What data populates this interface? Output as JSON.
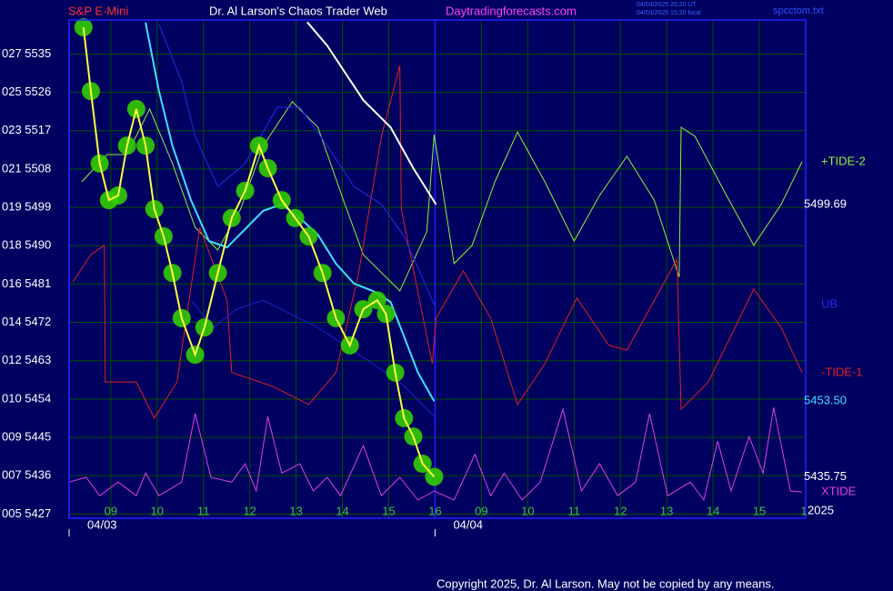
{
  "chart_data": {
    "type": "line",
    "symbol": "S&P E-Mini",
    "title": "Dr. Al Larson's Chaos Trader Web",
    "website": "Daytradingforecasts.com",
    "timestamps": [
      "04/03/2025 20:20 UT",
      "04/03/2025 15:20 local"
    ],
    "file": "spcctom.txt",
    "year": "2025",
    "copyright": "Copyright 2025, Dr. Al Larson. May not be copied by any means.",
    "grid": true,
    "xlim": [
      8.1,
      24
    ],
    "ylim": [
      5426,
      5543
    ],
    "xticks": [
      {
        "value": 9,
        "label": "09"
      },
      10,
      11,
      12,
      13,
      14,
      15,
      16,
      {
        "value": 17,
        "label": "09"
      },
      {
        "value": 18,
        "label": "10"
      },
      {
        "value": 19,
        "label": "11"
      },
      {
        "value": 20,
        "label": "12"
      },
      {
        "value": 21,
        "label": "13"
      },
      {
        "value": 22,
        "label": "14"
      },
      {
        "value": 23,
        "label": "15"
      },
      {
        "value": 24,
        "label": "1"
      }
    ],
    "yticks": [
      {
        "value": 5427,
        "label": "005 5427"
      },
      {
        "value": 5436,
        "label": "007 5436"
      },
      {
        "value": 5445,
        "label": "009 5445"
      },
      {
        "value": 5454,
        "label": "010 5454"
      },
      {
        "value": 5463,
        "label": "012 5463"
      },
      {
        "value": 5472,
        "label": "014 5472"
      },
      {
        "value": 5481,
        "label": "016 5481"
      },
      {
        "value": 5490,
        "label": "018 5490"
      },
      {
        "value": 5499,
        "label": "019 5499"
      },
      {
        "value": 5508,
        "label": "021 5508"
      },
      {
        "value": 5517,
        "label": "023 5517"
      },
      {
        "value": 5526,
        "label": "025 5526"
      },
      {
        "value": 5535,
        "label": "027 5535"
      }
    ],
    "date_labels": [
      {
        "x": 8.1,
        "label": "04/03"
      },
      {
        "x": 16,
        "label": "04/04"
      }
    ],
    "series": [
      {
        "name": "+TIDE-2",
        "color": "#90f040",
        "x": [
          8.37,
          8.92,
          9.35,
          9.84,
          10.33,
          10.82,
          11.31,
          11.8,
          12.29,
          12.92,
          13.47,
          14.02,
          14.45,
          15.24,
          15.82,
          15.98,
          16.41,
          16.8,
          17.29,
          17.78,
          18.37,
          19.0,
          19.55,
          20.14,
          20.73,
          21.27,
          21.31,
          21.61,
          22.29,
          22.88,
          23.47,
          23.92
        ],
        "values": [
          5505.0,
          5511.4,
          5511.4,
          5522.1,
          5509.3,
          5494.3,
          5489.0,
          5498.6,
          5513.5,
          5523.8,
          5517.8,
          5500.7,
          5487.9,
          5479.4,
          5493.3,
          5516.1,
          5485.8,
          5490.1,
          5505.0,
          5516.7,
          5505.0,
          5491.1,
          5501.8,
          5511.0,
          5500.7,
          5482.6,
          5517.8,
          5515.7,
          5501.8,
          5490.1,
          5499.7,
          5509.7
        ]
      },
      {
        "name": "-TIDE-1",
        "color": "#e02020",
        "x": [
          8.18,
          8.57,
          8.86,
          8.88,
          9.55,
          9.94,
          10.43,
          10.92,
          11.51,
          11.61,
          12.49,
          13.27,
          13.86,
          14.35,
          14.84,
          15.24,
          15.27,
          15.94,
          16.02,
          16.61,
          17.2,
          17.78,
          18.37,
          19.06,
          19.75,
          20.14,
          21.22,
          21.31,
          21.9,
          22.88,
          23.47,
          23.92
        ],
        "values": [
          5481.5,
          5487.9,
          5490.1,
          5458.0,
          5458.0,
          5449.5,
          5458.0,
          5494.3,
          5477.2,
          5460.2,
          5457.0,
          5452.7,
          5460.2,
          5483.6,
          5515.7,
          5532.3,
          5498.6,
          5462.3,
          5473.0,
          5484.1,
          5473.0,
          5452.7,
          5462.3,
          5477.7,
          5466.6,
          5465.5,
          5486.8,
          5451.6,
          5458.0,
          5479.8,
          5470.8,
          5460.2
        ]
      },
      {
        "name": "XTIDE",
        "color": "#e040e0",
        "x": [
          8.1,
          8.47,
          8.76,
          9.16,
          9.55,
          9.75,
          10.04,
          10.53,
          10.82,
          11.16,
          11.61,
          11.9,
          12.14,
          12.39,
          12.69,
          13.08,
          13.37,
          13.67,
          13.96,
          14.45,
          14.84,
          15.24,
          15.63,
          15.98,
          16.41,
          16.86,
          17.2,
          17.49,
          17.88,
          18.27,
          18.76,
          19.16,
          19.55,
          19.94,
          20.33,
          20.63,
          21.02,
          21.51,
          21.8,
          22.1,
          22.39,
          22.78,
          23.08,
          23.31,
          23.67,
          23.92
        ],
        "values": [
          5434.5,
          5435.6,
          5431.3,
          5434.5,
          5431.3,
          5436.6,
          5431.3,
          5434.5,
          5450.6,
          5435.6,
          5434.5,
          5438.8,
          5432.4,
          5449.9,
          5436.6,
          5438.8,
          5432.4,
          5435.6,
          5431.3,
          5443.1,
          5431.3,
          5435.6,
          5430.3,
          5432.4,
          5430.3,
          5441.0,
          5431.3,
          5436.6,
          5430.3,
          5434.5,
          5451.6,
          5432.4,
          5438.8,
          5431.3,
          5434.5,
          5450.6,
          5431.3,
          5434.5,
          5430.3,
          5444.1,
          5432.4,
          5445.2,
          5436.6,
          5452.0,
          5432.4,
          5432.2
        ]
      },
      {
        "name": "UB",
        "color": "#2828e8",
        "x": [
          10.04,
          10.53,
          10.82,
          11.31,
          11.9,
          12.59,
          13.08,
          13.67,
          14.25,
          14.84,
          15.33,
          15.98
        ],
        "values": [
          5542.0,
          5528.5,
          5515.7,
          5503.9,
          5509.3,
          5522.5,
          5522.5,
          5513.5,
          5503.9,
          5499.7,
          5492.2,
          5476.2
        ]
      },
      {
        "color": "#2020c8",
        "x": [
          10.73,
          11.22,
          11.71,
          12.29,
          12.88,
          13.47,
          14.06,
          14.65,
          15.24,
          15.98
        ],
        "values": [
          5477.2,
          5470.8,
          5475.1,
          5477.2,
          5474.0,
          5470.8,
          5466.6,
          5462.3,
          5458.0,
          5449.9
        ]
      },
      {
        "color": "#40e0ff",
        "end_label": {
          "value": 5453.5,
          "label": "5453.50"
        },
        "x": [
          9.75,
          10.04,
          10.33,
          10.73,
          11.12,
          11.51,
          11.9,
          12.29,
          12.69,
          13.08,
          13.47,
          13.86,
          14.25,
          14.65,
          15.04,
          15.33,
          15.63,
          15.98
        ],
        "values": [
          5542.4,
          5526.3,
          5513.5,
          5500.7,
          5491.1,
          5489.6,
          5493.9,
          5498.2,
          5499.7,
          5496.5,
          5492.6,
          5485.8,
          5481.1,
          5479.4,
          5476.8,
          5468.7,
          5460.2,
          5453.5
        ]
      },
      {
        "color": "#ffffff",
        "end_label": 5499.69,
        "x": [
          13.24,
          13.67,
          14.45,
          15.04,
          15.53,
          16.02
        ],
        "values": [
          5542.5,
          5537.0,
          5524.2,
          5517.8,
          5508.2,
          5499.69
        ]
      },
      {
        "color": "#ffff40",
        "marker_color": "#33cc00",
        "end_label": 5435.75,
        "x": [
          8.41,
          8.57,
          8.76,
          8.96,
          9.16,
          9.35,
          9.55,
          9.75,
          9.94,
          10.14,
          10.33,
          10.53,
          10.82,
          11.02,
          11.31,
          11.61,
          11.9,
          12.2,
          12.39,
          12.69,
          12.98,
          13.27,
          13.57,
          13.86,
          14.16,
          14.45,
          14.75,
          14.94,
          15.14,
          15.33,
          15.53,
          15.73,
          15.98
        ],
        "values": [
          5541.3,
          5526.3,
          5509.3,
          5500.7,
          5501.8,
          5513.5,
          5522.1,
          5513.5,
          5498.6,
          5492.2,
          5483.6,
          5473.0,
          5464.4,
          5470.8,
          5483.6,
          5496.5,
          5502.9,
          5513.5,
          5508.2,
          5500.7,
          5496.5,
          5492.2,
          5483.6,
          5473.0,
          5466.6,
          5475.1,
          5477.2,
          5474.0,
          5460.2,
          5449.5,
          5445.2,
          5438.8,
          5435.75
        ]
      }
    ]
  }
}
